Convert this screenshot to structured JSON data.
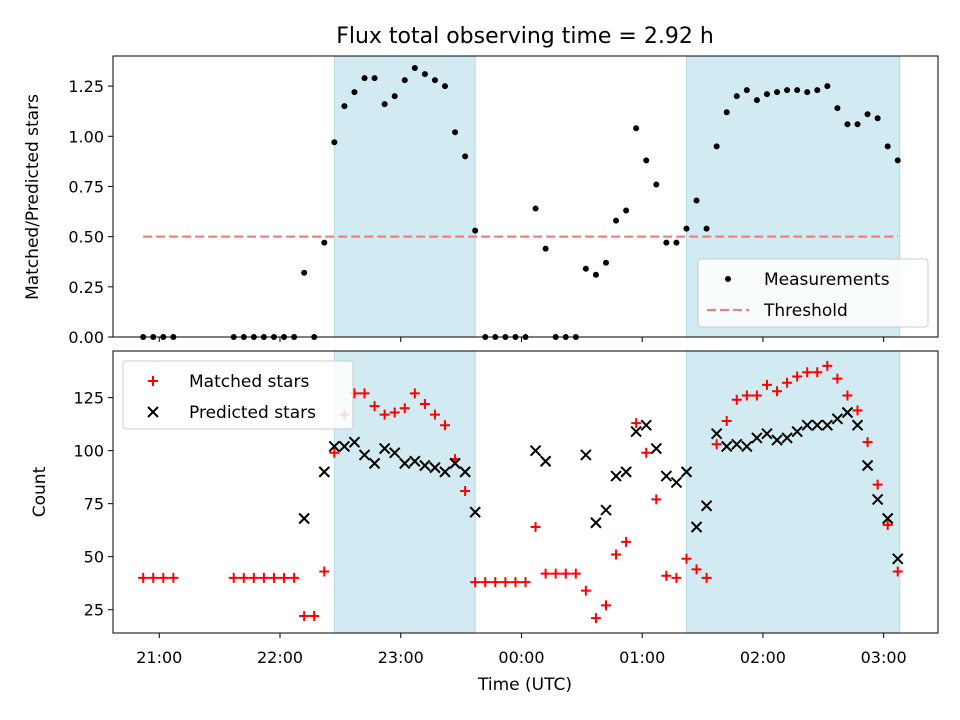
{
  "chart_data": [
    {
      "type": "scatter",
      "title": "Flux total observing time = 2.92 h",
      "xlabel": "",
      "ylabel": "Matched/Predicted stars",
      "ylim": [
        0,
        1.4
      ],
      "yticks": [
        "0.00",
        "0.25",
        "0.50",
        "0.75",
        "1.00",
        "1.25"
      ],
      "ytick_values": [
        0,
        0.25,
        0.5,
        0.75,
        1.0,
        1.25
      ],
      "xlim": [
        "20:37",
        "03:27"
      ],
      "shaded_ranges": [
        [
          "22:27",
          "23:37"
        ],
        [
          "01:22",
          "03:08"
        ]
      ],
      "shade_color": "#add8e6",
      "legend_position": "lower right",
      "series": [
        {
          "name": "Measurements",
          "marker": "dot",
          "color": "#000000",
          "points": [
            [
              "20:52",
              0
            ],
            [
              "20:57",
              0
            ],
            [
              "21:02",
              0
            ],
            [
              "21:07",
              0
            ],
            [
              "21:37",
              0
            ],
            [
              "21:42",
              0
            ],
            [
              "21:47",
              0
            ],
            [
              "21:52",
              0
            ],
            [
              "21:57",
              0
            ],
            [
              "22:02",
              0
            ],
            [
              "22:07",
              0
            ],
            [
              "22:12",
              0.32
            ],
            [
              "22:17",
              0
            ],
            [
              "22:22",
              0.47
            ],
            [
              "22:27",
              0.97
            ],
            [
              "22:32",
              1.15
            ],
            [
              "22:37",
              1.22
            ],
            [
              "22:42",
              1.29
            ],
            [
              "22:47",
              1.29
            ],
            [
              "22:52",
              1.16
            ],
            [
              "22:57",
              1.2
            ],
            [
              "23:02",
              1.28
            ],
            [
              "23:07",
              1.34
            ],
            [
              "23:12",
              1.31
            ],
            [
              "23:17",
              1.28
            ],
            [
              "23:22",
              1.25
            ],
            [
              "23:27",
              1.02
            ],
            [
              "23:32",
              0.9
            ],
            [
              "23:37",
              0.53
            ],
            [
              "23:42",
              0
            ],
            [
              "23:47",
              0
            ],
            [
              "23:52",
              0
            ],
            [
              "23:57",
              0
            ],
            [
              "00:02",
              0
            ],
            [
              "00:07",
              0.64
            ],
            [
              "00:12",
              0.44
            ],
            [
              "00:17",
              0
            ],
            [
              "00:22",
              0
            ],
            [
              "00:27",
              0
            ],
            [
              "00:32",
              0.34
            ],
            [
              "00:37",
              0.31
            ],
            [
              "00:42",
              0.37
            ],
            [
              "00:47",
              0.58
            ],
            [
              "00:52",
              0.63
            ],
            [
              "00:57",
              1.04
            ],
            [
              "01:02",
              0.88
            ],
            [
              "01:07",
              0.76
            ],
            [
              "01:12",
              0.47
            ],
            [
              "01:17",
              0.47
            ],
            [
              "01:22",
              0.54
            ],
            [
              "01:27",
              0.68
            ],
            [
              "01:32",
              0.54
            ],
            [
              "01:37",
              0.95
            ],
            [
              "01:42",
              1.12
            ],
            [
              "01:47",
              1.2
            ],
            [
              "01:52",
              1.23
            ],
            [
              "01:57",
              1.18
            ],
            [
              "02:02",
              1.21
            ],
            [
              "02:07",
              1.22
            ],
            [
              "02:12",
              1.23
            ],
            [
              "02:17",
              1.23
            ],
            [
              "02:22",
              1.22
            ],
            [
              "02:27",
              1.23
            ],
            [
              "02:32",
              1.25
            ],
            [
              "02:37",
              1.14
            ],
            [
              "02:42",
              1.06
            ],
            [
              "02:47",
              1.06
            ],
            [
              "02:52",
              1.11
            ],
            [
              "02:57",
              1.09
            ],
            [
              "03:02",
              0.95
            ],
            [
              "03:07",
              0.88
            ]
          ]
        },
        {
          "name": "Threshold",
          "marker": "dashed-line",
          "color": "#f08080",
          "points": [
            [
              "20:52",
              0.5
            ],
            [
              "03:07",
              0.5
            ]
          ]
        }
      ]
    },
    {
      "type": "scatter",
      "title": "",
      "xlabel": "Time (UTC)",
      "ylabel": "Count",
      "ylim": [
        14,
        147
      ],
      "yticks": [
        "25",
        "50",
        "75",
        "100",
        "125"
      ],
      "ytick_values": [
        25,
        50,
        75,
        100,
        125
      ],
      "xlim": [
        "20:37",
        "03:27"
      ],
      "xticks": [
        "21:00",
        "22:00",
        "23:00",
        "00:00",
        "01:00",
        "02:00",
        "03:00"
      ],
      "shaded_ranges": [
        [
          "22:27",
          "23:37"
        ],
        [
          "01:22",
          "03:08"
        ]
      ],
      "shade_color": "#add8e6",
      "legend_position": "upper left",
      "series": [
        {
          "name": "Matched stars",
          "marker": "plus",
          "color": "#ff0000",
          "points": [
            [
              "20:52",
              40
            ],
            [
              "20:57",
              40
            ],
            [
              "21:02",
              40
            ],
            [
              "21:07",
              40
            ],
            [
              "21:37",
              40
            ],
            [
              "21:42",
              40
            ],
            [
              "21:47",
              40
            ],
            [
              "21:52",
              40
            ],
            [
              "21:57",
              40
            ],
            [
              "22:02",
              40
            ],
            [
              "22:07",
              40
            ],
            [
              "22:12",
              22
            ],
            [
              "22:17",
              22
            ],
            [
              "22:22",
              43
            ],
            [
              "22:27",
              99
            ],
            [
              "22:32",
              117
            ],
            [
              "22:37",
              127
            ],
            [
              "22:42",
              127
            ],
            [
              "22:47",
              121
            ],
            [
              "22:52",
              117
            ],
            [
              "22:57",
              118
            ],
            [
              "23:02",
              120
            ],
            [
              "23:07",
              127
            ],
            [
              "23:12",
              122
            ],
            [
              "23:17",
              117
            ],
            [
              "23:22",
              112
            ],
            [
              "23:27",
              96
            ],
            [
              "23:32",
              81
            ],
            [
              "23:37",
              38
            ],
            [
              "23:42",
              38
            ],
            [
              "23:47",
              38
            ],
            [
              "23:52",
              38
            ],
            [
              "23:57",
              38
            ],
            [
              "00:02",
              38
            ],
            [
              "00:07",
              64
            ],
            [
              "00:12",
              42
            ],
            [
              "00:17",
              42
            ],
            [
              "00:22",
              42
            ],
            [
              "00:27",
              42
            ],
            [
              "00:32",
              34
            ],
            [
              "00:37",
              21
            ],
            [
              "00:42",
              27
            ],
            [
              "00:47",
              51
            ],
            [
              "00:52",
              57
            ],
            [
              "00:57",
              113
            ],
            [
              "01:02",
              99
            ],
            [
              "01:07",
              77
            ],
            [
              "01:12",
              41
            ],
            [
              "01:17",
              40
            ],
            [
              "01:22",
              49
            ],
            [
              "01:27",
              44
            ],
            [
              "01:32",
              40
            ],
            [
              "01:37",
              103
            ],
            [
              "01:42",
              114
            ],
            [
              "01:47",
              124
            ],
            [
              "01:52",
              126
            ],
            [
              "01:57",
              126
            ],
            [
              "02:02",
              131
            ],
            [
              "02:07",
              128
            ],
            [
              "02:12",
              132
            ],
            [
              "02:17",
              135
            ],
            [
              "02:22",
              137
            ],
            [
              "02:27",
              137
            ],
            [
              "02:32",
              140
            ],
            [
              "02:37",
              134
            ],
            [
              "02:42",
              126
            ],
            [
              "02:47",
              119
            ],
            [
              "02:52",
              104
            ],
            [
              "02:57",
              84
            ],
            [
              "03:02",
              65
            ],
            [
              "03:07",
              43
            ]
          ]
        },
        {
          "name": "Predicted stars",
          "marker": "x",
          "color": "#000000",
          "points": [
            [
              "22:12",
              68
            ],
            [
              "22:22",
              90
            ],
            [
              "22:27",
              102
            ],
            [
              "22:32",
              102
            ],
            [
              "22:37",
              104
            ],
            [
              "22:42",
              98
            ],
            [
              "22:47",
              94
            ],
            [
              "22:52",
              101
            ],
            [
              "22:57",
              99
            ],
            [
              "23:02",
              94
            ],
            [
              "23:07",
              95
            ],
            [
              "23:12",
              93
            ],
            [
              "23:17",
              92
            ],
            [
              "23:22",
              90
            ],
            [
              "23:27",
              94
            ],
            [
              "23:32",
              90
            ],
            [
              "23:37",
              71
            ],
            [
              "00:07",
              100
            ],
            [
              "00:12",
              95
            ],
            [
              "00:32",
              98
            ],
            [
              "00:37",
              66
            ],
            [
              "00:42",
              72
            ],
            [
              "00:47",
              88
            ],
            [
              "00:52",
              90
            ],
            [
              "00:57",
              109
            ],
            [
              "01:02",
              112
            ],
            [
              "01:07",
              101
            ],
            [
              "01:12",
              88
            ],
            [
              "01:17",
              85
            ],
            [
              "01:22",
              90
            ],
            [
              "01:27",
              64
            ],
            [
              "01:32",
              74
            ],
            [
              "01:37",
              108
            ],
            [
              "01:42",
              102
            ],
            [
              "01:47",
              103
            ],
            [
              "01:52",
              102
            ],
            [
              "01:57",
              106
            ],
            [
              "02:02",
              108
            ],
            [
              "02:07",
              105
            ],
            [
              "02:12",
              106
            ],
            [
              "02:17",
              109
            ],
            [
              "02:22",
              112
            ],
            [
              "02:27",
              112
            ],
            [
              "02:32",
              112
            ],
            [
              "02:37",
              115
            ],
            [
              "02:42",
              118
            ],
            [
              "02:47",
              112
            ],
            [
              "02:52",
              93
            ],
            [
              "02:57",
              77
            ],
            [
              "03:02",
              68
            ],
            [
              "03:07",
              49
            ]
          ]
        }
      ]
    }
  ]
}
